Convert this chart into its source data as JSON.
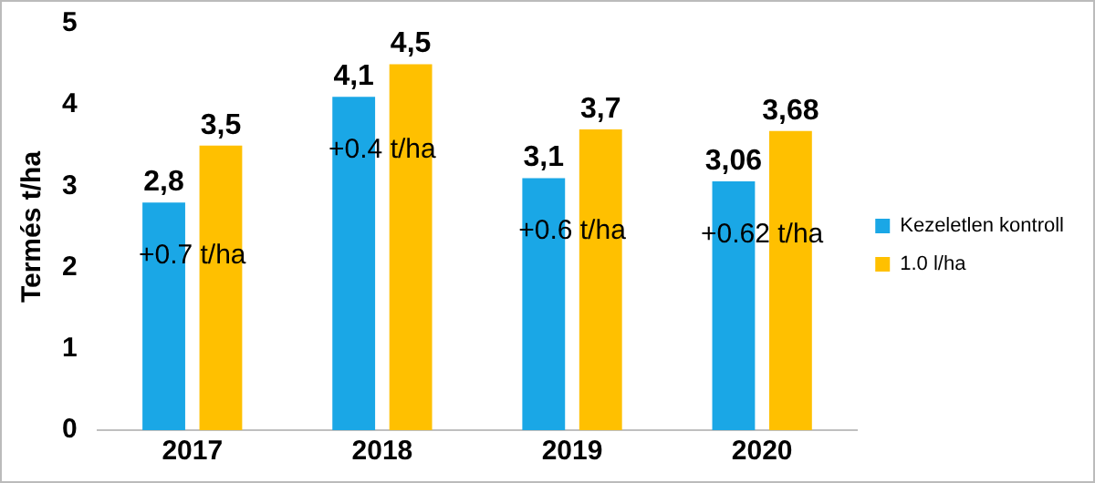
{
  "chart_data": {
    "type": "bar",
    "ylabel": "Termés t/ha",
    "categories": [
      "2017",
      "2018",
      "2019",
      "2020"
    ],
    "series": [
      {
        "name": "Kezeletlen kontroll",
        "color": "#1aa7e6",
        "values": [
          2.8,
          4.1,
          3.1,
          3.06
        ],
        "value_labels": [
          "2,8",
          "4,1",
          "3,1",
          "3,06"
        ]
      },
      {
        "name": "1.0 l/ha",
        "color": "#ffc000",
        "values": [
          3.5,
          4.5,
          3.7,
          3.68
        ],
        "value_labels": [
          "3,5",
          "4,5",
          "3,7",
          "3,68"
        ]
      }
    ],
    "annotations": [
      {
        "text": "+0.7 t/ha",
        "x": "2017",
        "y": 2.15
      },
      {
        "text": "+0.4 t/ha",
        "x": "2018",
        "y": 3.45
      },
      {
        "text": "+0.6 t/ha",
        "x": "2019",
        "y": 2.45
      },
      {
        "text": "+0.62 t/ha",
        "x": "2020",
        "y": 2.4
      }
    ],
    "ylim": [
      0,
      5
    ],
    "yticks": [
      0,
      1,
      2,
      3,
      4,
      5
    ],
    "grid": false,
    "legend": "right"
  }
}
